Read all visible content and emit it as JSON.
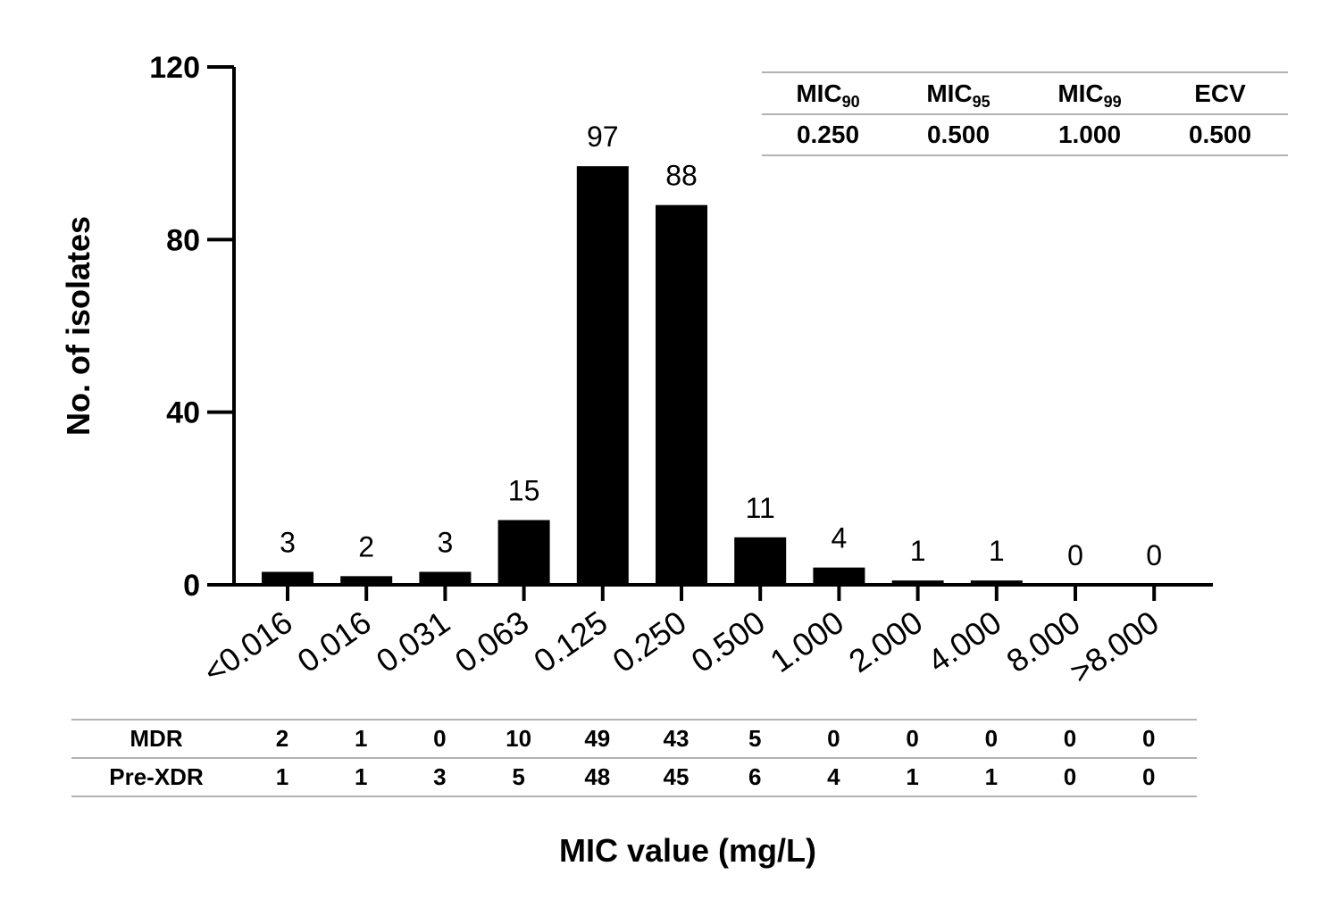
{
  "chart_data": {
    "type": "bar",
    "categories": [
      "<0.016",
      "0.016",
      "0.031",
      "0.063",
      "0.125",
      "0.250",
      "0.500",
      "1.000",
      "2.000",
      "4.000",
      "8.000",
      ">8.000"
    ],
    "values": [
      3,
      2,
      3,
      15,
      97,
      88,
      11,
      4,
      1,
      1,
      0,
      0
    ],
    "xlabel": "MIC value (mg/L)",
    "ylabel": "No. of isolates",
    "ylim": [
      0,
      120
    ],
    "yticks": [
      0,
      40,
      80,
      120
    ],
    "bar_color": "#000000",
    "grid": false,
    "table_rows": [
      {
        "label": "MDR",
        "values": [
          2,
          1,
          0,
          10,
          49,
          43,
          5,
          0,
          0,
          0,
          0,
          0
        ]
      },
      {
        "label": "Pre-XDR",
        "values": [
          1,
          1,
          3,
          5,
          48,
          45,
          6,
          4,
          1,
          1,
          0,
          0
        ]
      }
    ],
    "inset_table": {
      "headers": [
        {
          "base": "MIC",
          "sub": "90"
        },
        {
          "base": "MIC",
          "sub": "95"
        },
        {
          "base": "MIC",
          "sub": "99"
        },
        {
          "base": "ECV",
          "sub": ""
        }
      ],
      "values": [
        "0.250",
        "0.500",
        "1.000",
        "0.500"
      ]
    }
  }
}
